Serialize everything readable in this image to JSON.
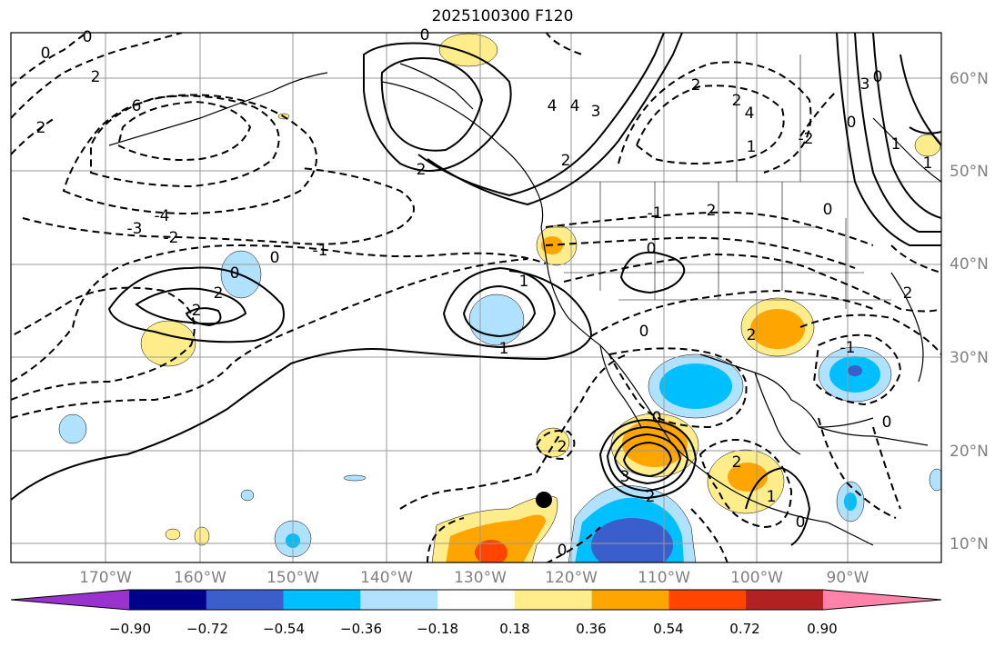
{
  "title": "2025100300 F120",
  "map": {
    "lon_labels": [
      "170°W",
      "160°W",
      "150°W",
      "140°W",
      "130°W",
      "120°W",
      "110°W",
      "100°W",
      "90°W"
    ],
    "lat_labels": [
      "60°N",
      "50°N",
      "40°N",
      "30°N",
      "20°N",
      "10°N"
    ],
    "contour_labels": [
      "0",
      "0",
      "2",
      "4",
      "6",
      "2",
      "-3",
      "-4",
      "-2",
      "0",
      "-1",
      "0",
      "2",
      "2",
      "1",
      "4",
      "3",
      "1",
      "2",
      "0",
      "2",
      "-1",
      "0",
      "2",
      "0",
      "3",
      "2",
      "0",
      "0",
      "2",
      "1",
      "2",
      "0",
      "4",
      "2",
      "-2",
      "2",
      "2",
      "0",
      "0",
      "2",
      "0",
      "3",
      "1",
      "-1",
      "1",
      "0",
      "1"
    ],
    "marker": "black-dot-storm-position"
  },
  "colorbar": {
    "colors": [
      "#9a32cd",
      "#00008b",
      "#3a5fcd",
      "#00bfff",
      "#b0e2ff",
      "#ffffff",
      "#ffec8b",
      "#ffa500",
      "#ff4500",
      "#b22222",
      "#ff82ab"
    ],
    "tick_labels": [
      "−0.90",
      "−0.72",
      "−0.54",
      "−0.36",
      "−0.18",
      "0.18",
      "0.36",
      "0.54",
      "0.72",
      "0.90"
    ],
    "extend": "both"
  }
}
